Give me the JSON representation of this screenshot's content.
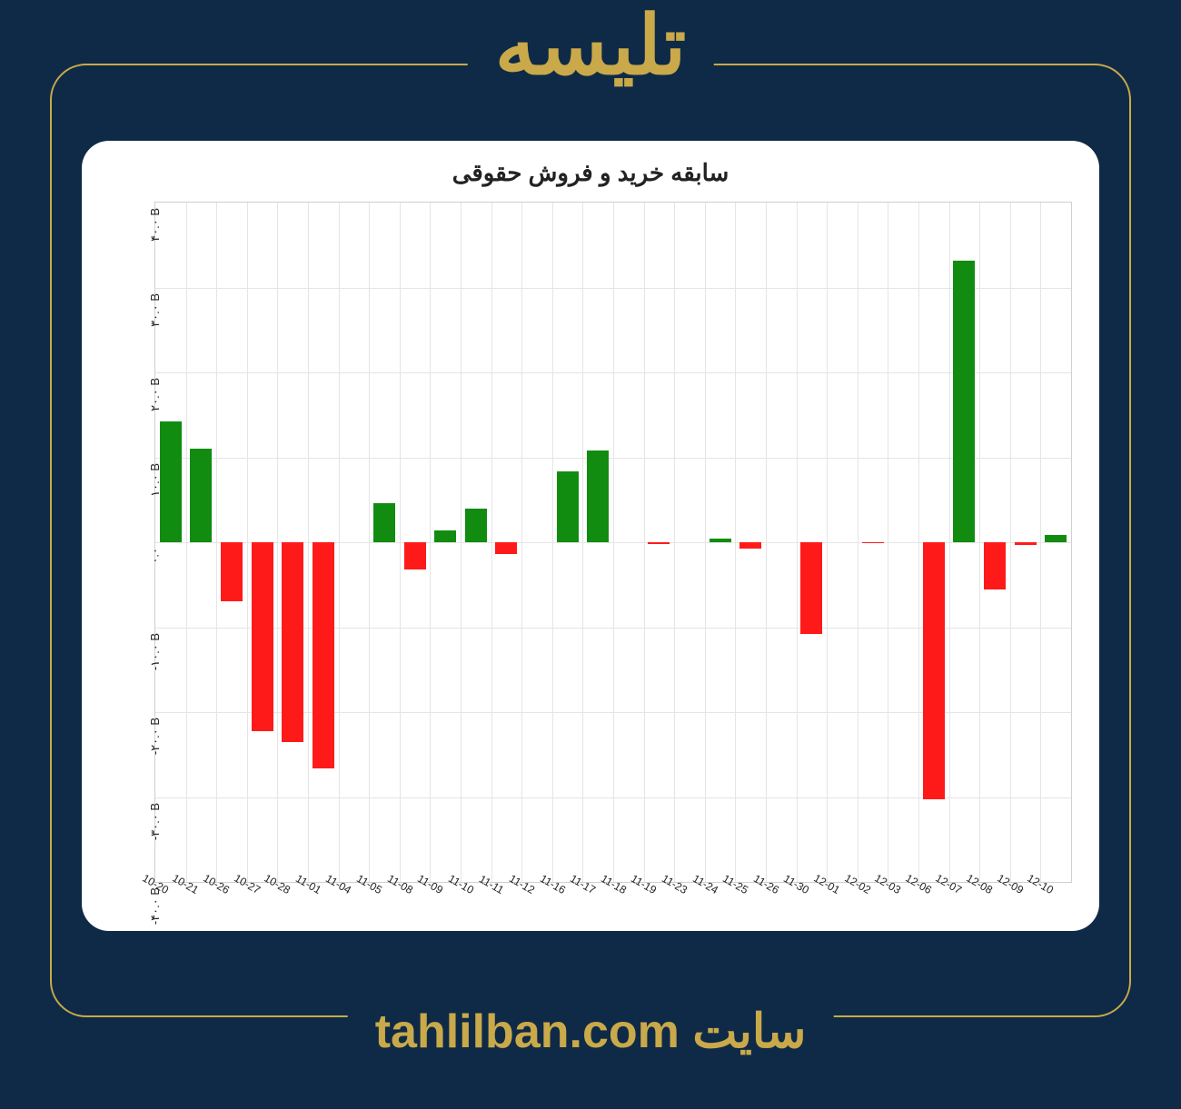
{
  "page": {
    "background_color": "#0e2a47",
    "frame_color": "#c9a94a",
    "header_title": "تلیسه",
    "footer_label": "سایت",
    "footer_url": "tahlilban.com"
  },
  "chart": {
    "type": "bar",
    "title": "سابقه خرید و فروش حقوقی",
    "title_fontsize": 26,
    "background_color": "#ffffff",
    "grid_color": "#e5e5e5",
    "border_color": "#d0d0d0",
    "positive_color": "#118c11",
    "negative_color": "#ff1a1a",
    "ylim": [
      -40,
      40
    ],
    "ytick_step": 10,
    "ytick_labels": [
      "-۴۰.۰ B",
      "-۳۰.۰ B",
      "-۲۰.۰ B",
      "-۱۰.۰ B",
      "۰.۰",
      "۱۰.۰ B",
      "۲۰.۰ B",
      "۳۰.۰ B",
      "۴۰.۰ B"
    ],
    "ytick_values": [
      -40,
      -30,
      -20,
      -10,
      0,
      10,
      20,
      30,
      40
    ],
    "bar_width_ratio": 0.72,
    "categories": [
      "10-20",
      "10-21",
      "10-26",
      "10-27",
      "10-28",
      "11-01",
      "11-04",
      "11-05",
      "11-08",
      "11-09",
      "11-10",
      "11-11",
      "11-12",
      "11-16",
      "11-17",
      "11-18",
      "11-19",
      "11-23",
      "11-24",
      "11-25",
      "11-26",
      "11-30",
      "12-01",
      "12-02",
      "12-03",
      "12-06",
      "12-07",
      "12-08",
      "12-09",
      "12-10"
    ],
    "values": [
      14.2,
      11.0,
      -7.0,
      -22.2,
      -23.5,
      -26.6,
      0.0,
      4.6,
      -3.2,
      1.4,
      4.0,
      -1.4,
      0.0,
      8.3,
      10.8,
      0.0,
      -0.25,
      0.0,
      0.4,
      -0.8,
      0.0,
      -10.8,
      0.0,
      -0.1,
      0.0,
      -30.3,
      33.2,
      -5.6,
      -0.3,
      0.9
    ]
  }
}
